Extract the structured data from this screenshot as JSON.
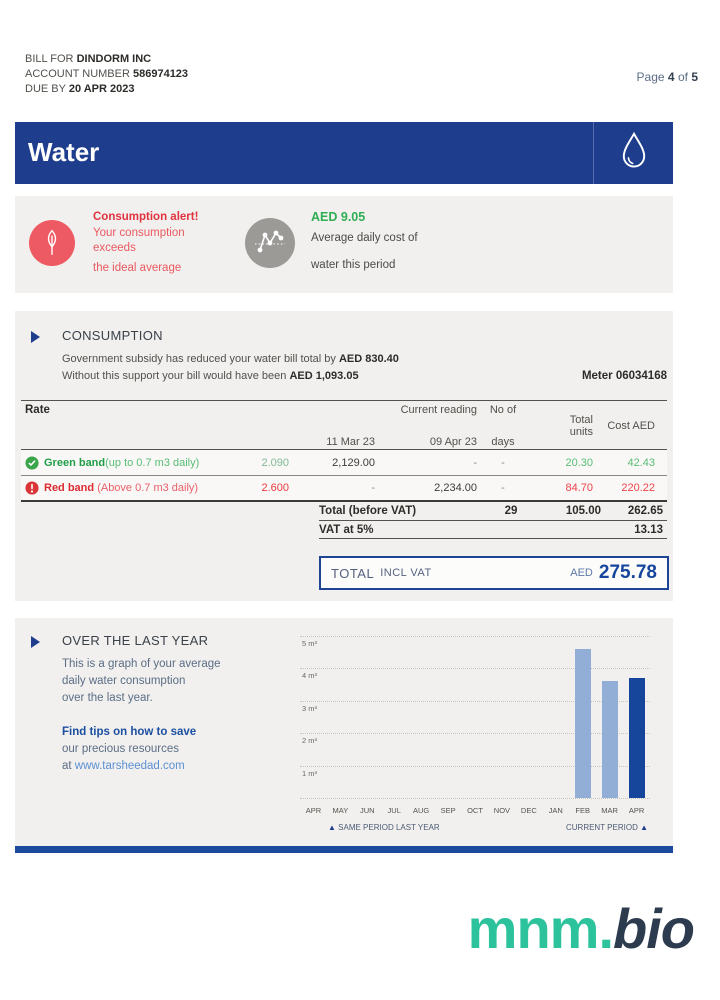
{
  "header": {
    "line1_label": "BILL FOR",
    "line1_value": "DINDORM INC",
    "line2_label": "ACCOUNT NUMBER",
    "line2_value": "586974123",
    "line3_label": "DUE BY",
    "line3_value": "20 APR 2023",
    "page_label": "Page",
    "page_number": "4",
    "page_of": "of",
    "page_total": "5"
  },
  "banner": {
    "title": "Water"
  },
  "alert": {
    "title": "Consumption alert!",
    "line1": "Your consumption",
    "line2": "exceeds",
    "line3": "the ideal average",
    "cost_value": "AED 9.05",
    "cost_line1": "Average daily cost of",
    "cost_line2": "water this period"
  },
  "consumption": {
    "heading": "CONSUMPTION",
    "subsidy_line1_prefix": "Government subsidy has reduced your water bill total by ",
    "subsidy_line1_value": "AED 830.40",
    "subsidy_line2_prefix": "Without this support your bill would have been ",
    "subsidy_line2_value": "AED 1,093.05",
    "meter": "Meter 06034168",
    "table": {
      "col_rate": "Rate",
      "col_current": "Current reading",
      "col_noof": "No of",
      "col_days": "days",
      "col_total_line1": "Total",
      "col_total_line2": "units",
      "col_cost": "Cost AED",
      "date_prev": "11 Mar 23",
      "date_curr": "09 Apr 23",
      "green_row": {
        "name": "Green band",
        "desc": "(up to 0.7 m3 daily)",
        "rate": "2.090",
        "prev": "2,129.00",
        "curr": "-",
        "days": "-",
        "units": "20.30",
        "cost": "42.43"
      },
      "red_row": {
        "name": "Red band",
        "desc": "(Above 0.7 m3 daily)",
        "rate": "2.600",
        "prev": "-",
        "curr": "2,234.00",
        "days": "-",
        "units": "84.70",
        "cost": "220.22"
      },
      "total_row": {
        "label": "Total (before VAT)",
        "days": "29",
        "units": "105.00",
        "cost": "262.65"
      },
      "vat_row": {
        "label": "VAT at 5%",
        "cost": "13.13"
      }
    },
    "total_box": {
      "label": "TOTAL",
      "label2": "INCL VAT",
      "currency": "AED",
      "amount": "275.78"
    }
  },
  "last_year": {
    "heading": "OVER THE LAST YEAR",
    "p1_line1": "This is a graph of your average",
    "p1_line2": "daily water consumption",
    "p1_line3": "over the last year.",
    "p2_line1": "Find tips on how to save",
    "p2_line2": "our precious resources",
    "p2_line3_prefix": "at ",
    "p2_link": "www.tarsheedad.com",
    "legend_left": "SAME PERIOD LAST YEAR",
    "legend_right": "CURRENT PERIOD"
  },
  "chart_data": {
    "type": "bar",
    "title": "Average daily water consumption over the last year",
    "categories": [
      "APR",
      "MAY",
      "JUN",
      "JUL",
      "AUG",
      "SEP",
      "OCT",
      "NOV",
      "DEC",
      "JAN",
      "FEB",
      "MAR",
      "APR"
    ],
    "values": [
      0,
      0,
      0,
      0,
      0,
      0,
      0,
      0,
      0,
      0,
      4.6,
      3.6,
      3.7
    ],
    "bar_series": [
      "same",
      "same",
      "same",
      "same",
      "same",
      "same",
      "same",
      "same",
      "same",
      "same",
      "same",
      "same",
      "current"
    ],
    "series_colors": {
      "same": "#93aed6",
      "current": "#16459c"
    },
    "ylabel": "m³",
    "ylim": [
      0,
      5
    ],
    "ytick_labels": [
      "5 m³",
      "4 m³",
      "3 m³",
      "2 m³",
      "1 m³"
    ],
    "grid": "horizontal-dotted",
    "legend": [
      "SAME PERIOD LAST YEAR",
      "CURRENT PERIOD"
    ]
  },
  "footer": {
    "logo_teal": "mnm.",
    "logo_dark": "bio"
  },
  "colors": {
    "banner_blue": "#1e3d8d",
    "accent_blue": "#16459c",
    "alert_red": "#e0333f",
    "ok_green": "#2fae52",
    "bar_light_blue": "#93aed6",
    "bar_dark_blue": "#16459c",
    "logo_teal": "#2bc29c",
    "logo_navy": "#2d3b4e"
  }
}
